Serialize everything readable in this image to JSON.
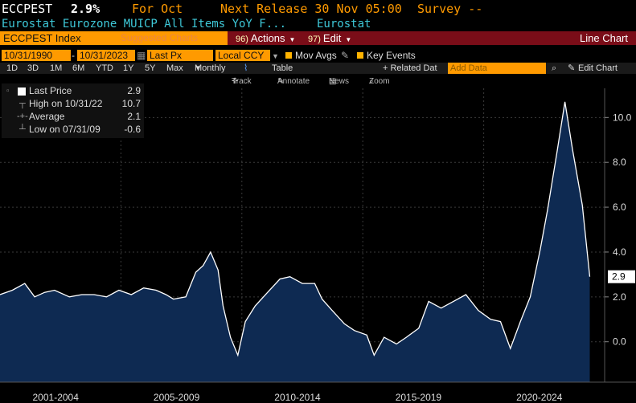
{
  "header": {
    "ticker": "ECCPEST",
    "last_value": "2.9%",
    "for_label": "For Oct",
    "next_release": "Next Release 30 Nov 05:00",
    "survey": "Survey --",
    "description": "Eurostat Eurozone MUICP All Items YoY F...",
    "source": "Eurostat"
  },
  "toolbar": {
    "security": "ECCPEST Index",
    "suggested": "Suggested Charts",
    "actions_num": "96)",
    "actions": "Actions",
    "edit_num": "97)",
    "edit": "Edit",
    "chart_type": "Line Chart"
  },
  "options": {
    "start_date": "10/31/1990",
    "end_date": "10/31/2023",
    "field": "Last Px",
    "currency": "Local CCY",
    "mov_avgs": "Mov Avgs",
    "key_events": "Key Events"
  },
  "periods": {
    "items": [
      "1D",
      "3D",
      "1M",
      "6M",
      "YTD",
      "1Y",
      "5Y",
      "Max"
    ],
    "frequency": "Monthly",
    "table": "Table",
    "related": "+ Related Dat",
    "add_data_placeholder": "Add Data",
    "edit_chart": "Edit Chart"
  },
  "tools": {
    "track": "Track",
    "annotate": "Annotate",
    "news": "News",
    "zoom": "Zoom"
  },
  "legend": {
    "last_price_label": "Last Price",
    "last_price_value": "2.9",
    "high_label": "High on 10/31/22",
    "high_value": "10.7",
    "average_label": "Average",
    "average_value": "2.1",
    "low_label": "Low on 07/31/09",
    "low_value": "-0.6"
  },
  "colors": {
    "area_fill": "#0e2a52",
    "line": "#ffffff",
    "bar_red": "#7a0d18",
    "orange": "#ff9a00",
    "cyan": "#3ec8d8"
  },
  "chart_data": {
    "type": "area",
    "title": "ECCPEST Index",
    "series": [
      {
        "name": "Last Price",
        "x": [
          2000.0,
          2000.5,
          2001.0,
          2001.4,
          2001.8,
          2002.2,
          2002.8,
          2003.3,
          2003.8,
          2004.3,
          2004.8,
          2005.3,
          2005.8,
          2006.3,
          2006.7,
          2007.0,
          2007.5,
          2007.9,
          2008.2,
          2008.5,
          2008.8,
          2009.0,
          2009.3,
          2009.6,
          2009.9,
          2010.3,
          2010.8,
          2011.3,
          2011.7,
          2012.2,
          2012.7,
          2013.0,
          2013.4,
          2013.9,
          2014.3,
          2014.8,
          2015.1,
          2015.5,
          2016.0,
          2016.4,
          2016.9,
          2017.3,
          2017.8,
          2018.3,
          2018.8,
          2019.3,
          2019.8,
          2020.2,
          2020.6,
          2021.0,
          2021.4,
          2021.8,
          2022.1,
          2022.5,
          2022.8,
          2023.1,
          2023.5,
          2023.8
        ],
        "values": [
          2.1,
          2.3,
          2.6,
          2.0,
          2.2,
          2.3,
          2.0,
          2.1,
          2.1,
          2.0,
          2.3,
          2.1,
          2.4,
          2.3,
          2.1,
          1.9,
          2.0,
          3.1,
          3.4,
          4.0,
          3.2,
          1.6,
          0.2,
          -0.6,
          0.9,
          1.6,
          2.2,
          2.8,
          2.9,
          2.6,
          2.6,
          1.9,
          1.4,
          0.8,
          0.5,
          0.3,
          -0.6,
          0.2,
          -0.1,
          0.2,
          0.6,
          1.8,
          1.5,
          1.8,
          2.1,
          1.4,
          1.0,
          0.9,
          -0.3,
          0.9,
          2.0,
          4.1,
          5.9,
          8.6,
          10.7,
          8.6,
          6.1,
          2.9
        ]
      }
    ],
    "xtick_labels": [
      "2001-2004",
      "2005-2009",
      "2010-2014",
      "2015-2019",
      "2020-2024"
    ],
    "yticks": [
      0.0,
      2.0,
      4.0,
      6.0,
      8.0,
      10.0
    ],
    "ytick_labels": [
      "0.0",
      "2.0",
      "4.0",
      "6.0",
      "8.0",
      "10.0"
    ],
    "ylim": [
      -1.8,
      11.3
    ],
    "xlim": [
      2000.0,
      2023.85
    ],
    "last_label": "2.9",
    "grid": true,
    "legend_position": "top-left"
  }
}
